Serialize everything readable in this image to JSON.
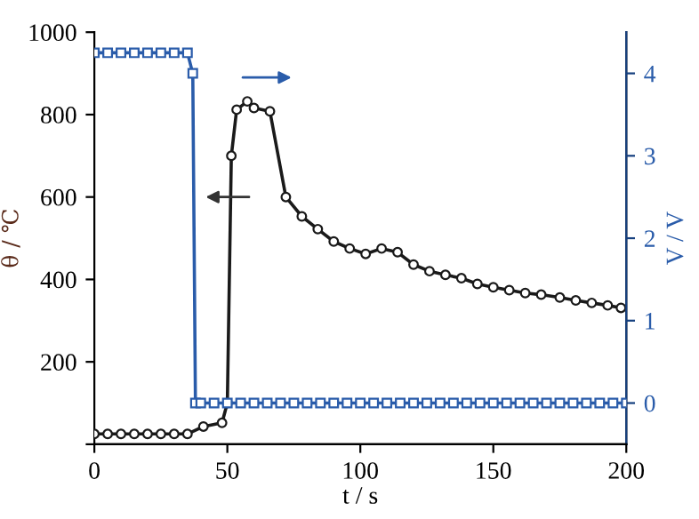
{
  "chart_data": {
    "type": "line",
    "xlabel": "t / s",
    "ylabel": "θ / ℃",
    "y2label": "V / V",
    "xlim": [
      0,
      200
    ],
    "xticks": [
      0,
      50,
      100,
      150,
      200
    ],
    "ylim": [
      0,
      1000
    ],
    "yticks": [
      {
        "value": 0,
        "label": null
      },
      200,
      400,
      600,
      800,
      1000
    ],
    "y2lim": [
      -0.5,
      4.5
    ],
    "y2ticks": [
      0,
      1,
      2,
      3,
      4
    ],
    "line_style": "solid",
    "grid": false,
    "legend": false,
    "series": [
      {
        "color": "#1a1a1a",
        "marker": "circle",
        "x": [
          0,
          5,
          10,
          15,
          20,
          25,
          30,
          35,
          41,
          48,
          50,
          51.5,
          53.5,
          57.5,
          60,
          66,
          72,
          78,
          84,
          90,
          96,
          102,
          108,
          114,
          120,
          126,
          132,
          138,
          144,
          150,
          156,
          162,
          168,
          175,
          181,
          187,
          193,
          198
        ],
        "values": [
          25,
          25,
          25,
          25,
          25,
          25,
          25,
          25,
          43,
          52,
          100,
          700,
          812,
          832,
          816,
          808,
          600,
          553,
          522,
          492,
          475,
          462,
          475,
          466,
          436,
          420,
          411,
          403,
          389,
          381,
          374,
          367,
          363,
          356,
          349,
          343,
          337,
          331
        ]
      },
      {
        "color": "#2a5caa",
        "marker": "square",
        "axis": "y2",
        "x": [
          0,
          5,
          10,
          15,
          20,
          25,
          30,
          35,
          37,
          38,
          40,
          45,
          50,
          55,
          60,
          65,
          70,
          75,
          80,
          85,
          90,
          95,
          100,
          105,
          110,
          115,
          120,
          125,
          130,
          135,
          140,
          145,
          150,
          155,
          160,
          165,
          170,
          175,
          180,
          185,
          190,
          195,
          200
        ],
        "values": [
          4.25,
          4.25,
          4.25,
          4.25,
          4.25,
          4.25,
          4.25,
          4.25,
          4.0,
          0,
          0,
          0,
          0,
          0,
          0,
          0,
          0,
          0,
          0,
          0,
          0,
          0,
          0,
          0,
          0,
          0,
          0,
          0,
          0,
          0,
          0,
          0,
          0,
          0,
          0,
          0,
          0,
          0,
          0,
          0,
          0,
          0,
          0
        ]
      }
    ]
  }
}
